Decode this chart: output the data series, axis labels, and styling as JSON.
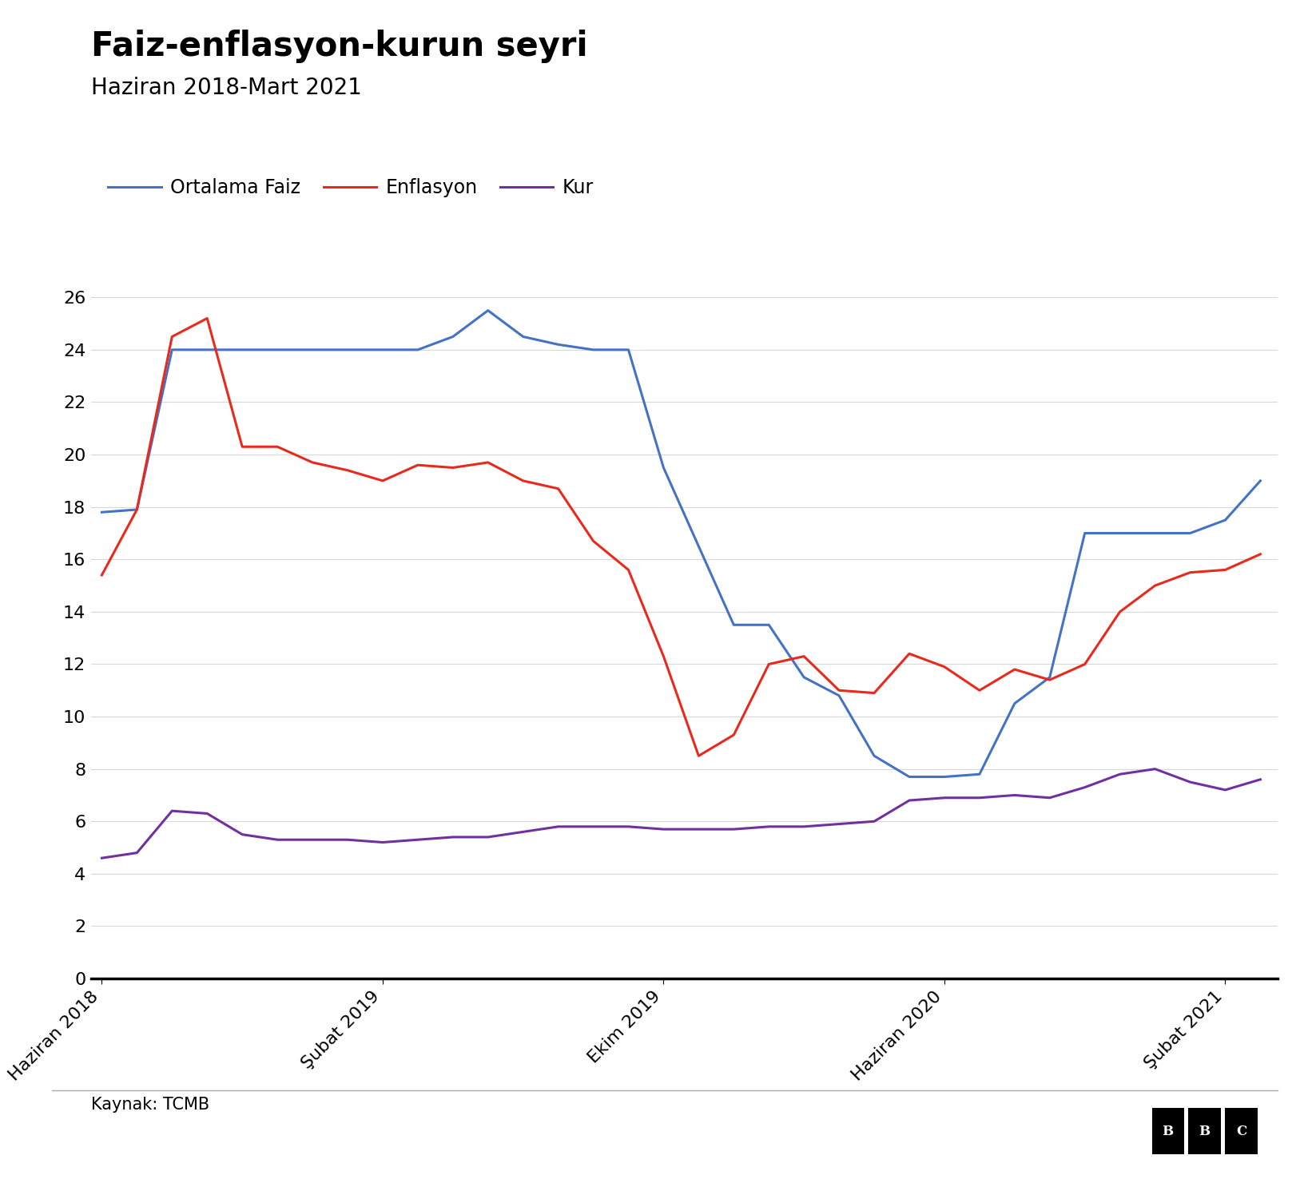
{
  "title": "Faiz-enflasyon-kurun seyri",
  "subtitle": "Haziran 2018-Mart 2021",
  "source": "Kaynak: TCMB",
  "legend": [
    "Ortalama Faiz",
    "Enflasyon",
    "Kur"
  ],
  "colors": {
    "faiz": "#4472C4",
    "enflasyon": "#E8291C",
    "kur": "#7030A0"
  },
  "x_ticks": [
    "Haziran 2018",
    "Şubat 2019",
    "Ekim 2019",
    "Haziran 2020",
    "Şubat 2021"
  ],
  "x_tick_positions": [
    0,
    8,
    16,
    24,
    32
  ],
  "ylim": [
    0,
    27
  ],
  "yticks": [
    0,
    2,
    4,
    6,
    8,
    10,
    12,
    14,
    16,
    18,
    20,
    22,
    24,
    26
  ],
  "faiz": {
    "x": [
      0,
      1,
      2,
      3,
      4,
      5,
      6,
      7,
      8,
      9,
      10,
      11,
      12,
      13,
      14,
      15,
      16,
      17,
      18,
      19,
      20,
      21,
      22,
      23,
      24,
      25,
      26,
      27,
      28,
      29,
      30,
      31,
      32,
      33
    ],
    "y": [
      17.8,
      17.9,
      24.0,
      24.0,
      24.0,
      24.0,
      24.0,
      24.0,
      24.0,
      24.0,
      24.5,
      25.5,
      24.5,
      24.2,
      24.0,
      24.0,
      19.5,
      16.5,
      13.5,
      13.5,
      11.5,
      10.8,
      8.5,
      7.7,
      7.7,
      7.8,
      10.5,
      11.5,
      17.0,
      17.0,
      17.0,
      17.0,
      17.5,
      19.0
    ]
  },
  "enflasyon": {
    "x": [
      0,
      1,
      2,
      3,
      4,
      5,
      6,
      7,
      8,
      9,
      10,
      11,
      12,
      13,
      14,
      15,
      16,
      17,
      18,
      19,
      20,
      21,
      22,
      23,
      24,
      25,
      26,
      27,
      28,
      29,
      30,
      31,
      32,
      33
    ],
    "y": [
      15.4,
      17.9,
      24.5,
      25.2,
      20.3,
      20.3,
      19.7,
      19.4,
      19.0,
      19.6,
      19.5,
      19.7,
      19.0,
      18.7,
      16.7,
      15.6,
      12.3,
      8.5,
      9.3,
      12.0,
      12.3,
      11.0,
      10.9,
      12.4,
      11.9,
      11.0,
      11.8,
      11.4,
      12.0,
      14.0,
      15.0,
      15.5,
      15.6,
      16.2
    ]
  },
  "kur": {
    "x": [
      0,
      1,
      2,
      3,
      4,
      5,
      6,
      7,
      8,
      9,
      10,
      11,
      12,
      13,
      14,
      15,
      16,
      17,
      18,
      19,
      20,
      21,
      22,
      23,
      24,
      25,
      26,
      27,
      28,
      29,
      30,
      31,
      32,
      33
    ],
    "y": [
      4.6,
      4.8,
      6.4,
      6.3,
      5.5,
      5.3,
      5.3,
      5.3,
      5.2,
      5.3,
      5.4,
      5.4,
      5.6,
      5.8,
      5.8,
      5.8,
      5.7,
      5.7,
      5.7,
      5.8,
      5.8,
      5.9,
      6.0,
      6.8,
      6.9,
      6.9,
      7.0,
      6.9,
      7.3,
      7.8,
      8.0,
      7.5,
      7.2,
      7.6
    ]
  },
  "line_width": 2.2,
  "background_color": "#FFFFFF",
  "title_fontsize": 30,
  "subtitle_fontsize": 20,
  "legend_fontsize": 17,
  "tick_fontsize": 16,
  "source_fontsize": 15
}
